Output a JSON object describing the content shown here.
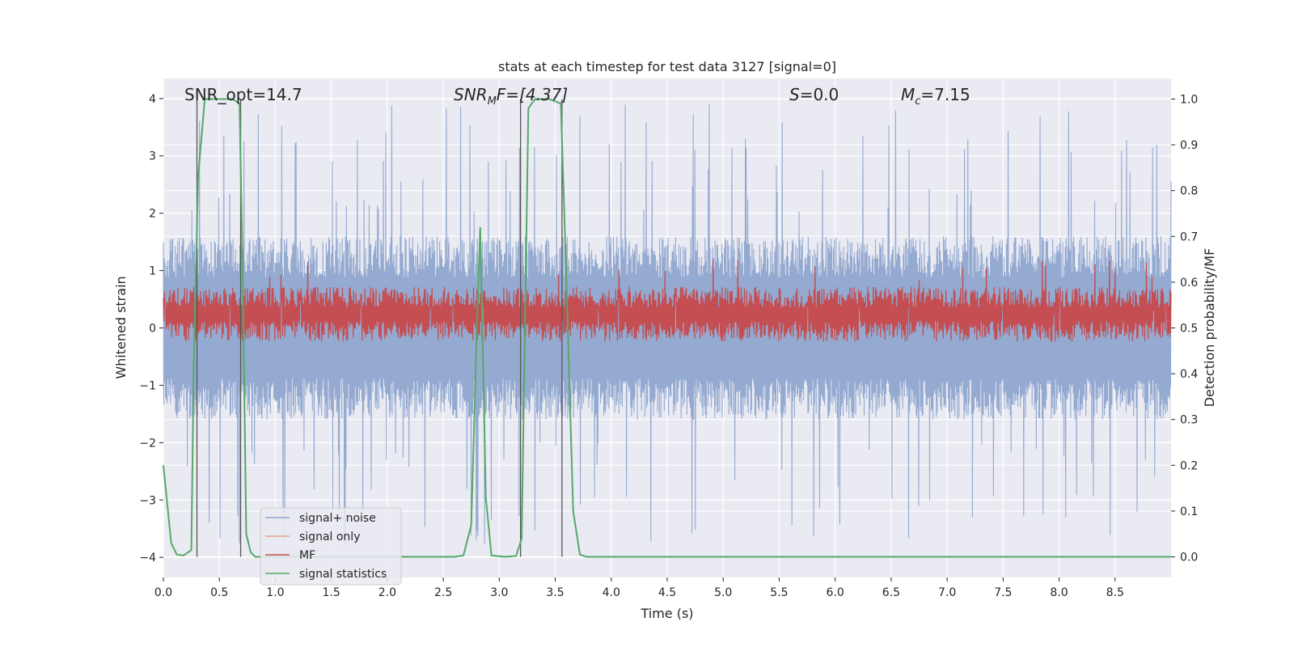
{
  "chart_data": {
    "type": "line",
    "title": "stats at each timestep for test data 3127 [signal=0]",
    "xlabel": "Time (s)",
    "ylabel": "Whitened strain",
    "y2label": "Detection probability/MF",
    "xlim": [
      0,
      9.0
    ],
    "ylim": [
      -4.35,
      4.35
    ],
    "y2lim": [
      -0.045,
      1.045
    ],
    "xticks": [
      0.0,
      0.5,
      1.0,
      1.5,
      2.0,
      2.5,
      3.0,
      3.5,
      4.0,
      4.5,
      5.0,
      5.5,
      6.0,
      6.5,
      7.0,
      7.5,
      8.0,
      8.5
    ],
    "xtick_labels": [
      "0.0",
      "0.5",
      "1.0",
      "1.5",
      "2.0",
      "2.5",
      "3.0",
      "3.5",
      "4.0",
      "4.5",
      "5.0",
      "5.5",
      "6.0",
      "6.5",
      "7.0",
      "7.5",
      "8.0",
      "8.5"
    ],
    "yticks": [
      -4,
      -3,
      -2,
      -1,
      0,
      1,
      2,
      3,
      4
    ],
    "ytick_labels": [
      "−4",
      "−3",
      "−2",
      "−1",
      "0",
      "1",
      "2",
      "3",
      "4"
    ],
    "y2ticks": [
      0.0,
      0.1,
      0.2,
      0.3,
      0.4,
      0.5,
      0.6,
      0.7,
      0.8,
      0.9,
      1.0
    ],
    "y2tick_labels": [
      "0.0",
      "0.1",
      "0.2",
      "0.3",
      "0.4",
      "0.5",
      "0.6",
      "0.7",
      "0.8",
      "0.9",
      "1.0"
    ],
    "annotations": {
      "snr_opt": "SNR_opt=14.7",
      "snr_mf_label": "SNR",
      "snr_mf_sub": "M",
      "snr_mf_value": "F=[4.37]",
      "s_label": "S",
      "s_value": "=0.0",
      "mc_label": "M",
      "mc_sub": "c",
      "mc_value": "=7.15"
    },
    "legend": {
      "position": "lower-left",
      "entries": [
        {
          "label": "signal+ noise",
          "color": "#8fa6cf"
        },
        {
          "label": "signal only",
          "color": "#e8a58a"
        },
        {
          "label": "MF",
          "color": "#c44e52"
        },
        {
          "label": "signal statistics",
          "color": "#55a868"
        }
      ]
    },
    "series": [
      {
        "name": "signal+ noise",
        "axis": "left",
        "color": "#8fa6cf",
        "style": "noise",
        "amplitude_typical": 1.6,
        "amplitude_peak": 4.0
      },
      {
        "name": "signal only",
        "axis": "left",
        "color": "#e8a58a",
        "values": []
      },
      {
        "name": "MF",
        "axis": "right",
        "color": "#c44e52",
        "style": "noise",
        "center": 0.53,
        "spread": 0.05
      },
      {
        "name": "signal statistics",
        "axis": "right",
        "color": "#55a868",
        "x": [
          0.0,
          0.07,
          0.12,
          0.18,
          0.25,
          0.27,
          0.31,
          0.37,
          0.45,
          0.55,
          0.62,
          0.68,
          0.71,
          0.74,
          0.78,
          0.82,
          2.6,
          2.68,
          2.75,
          2.8,
          2.83,
          2.88,
          2.93,
          3.05,
          3.15,
          3.2,
          3.26,
          3.32,
          3.37,
          3.45,
          3.55,
          3.6,
          3.66,
          3.72,
          3.78,
          9.0
        ],
        "values": [
          0.2,
          0.03,
          0.005,
          0.003,
          0.015,
          0.4,
          0.83,
          1.0,
          1.0,
          1.0,
          1.0,
          0.99,
          0.6,
          0.05,
          0.01,
          0.0,
          0.0,
          0.003,
          0.07,
          0.5,
          0.72,
          0.13,
          0.003,
          0.0,
          0.002,
          0.04,
          0.98,
          1.0,
          1.0,
          1.0,
          0.99,
          0.6,
          0.1,
          0.005,
          0.0,
          0.0
        ]
      }
    ],
    "vertical_markers": [
      0.3,
      0.69,
      3.19,
      3.56
    ]
  }
}
